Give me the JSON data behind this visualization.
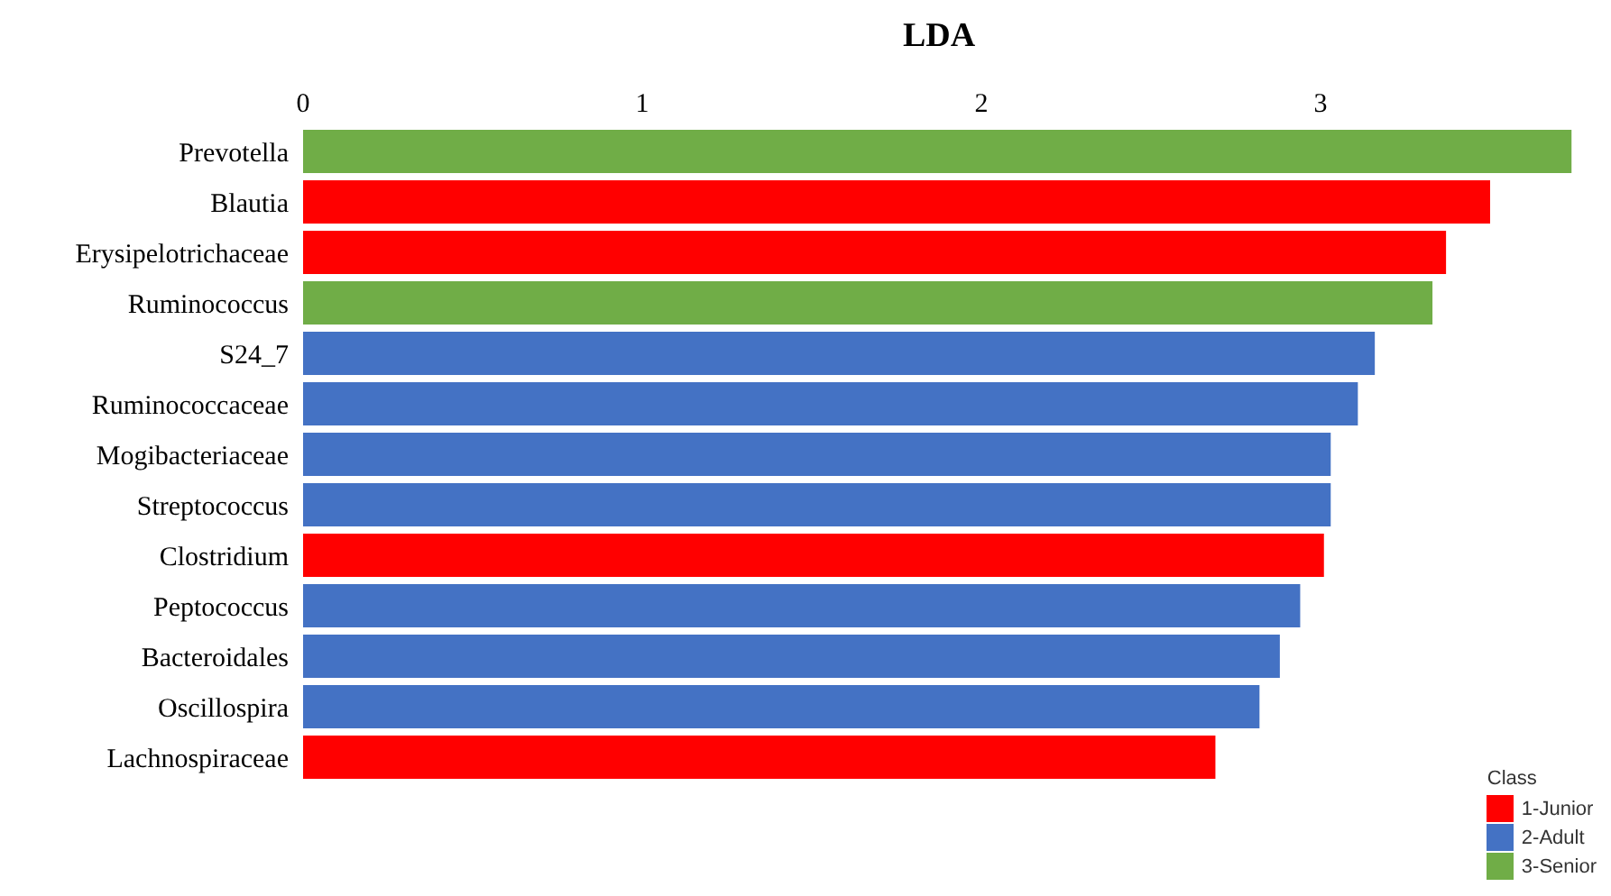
{
  "chart_data": {
    "type": "bar",
    "orientation": "horizontal",
    "stacked": true,
    "xlabel": "LDA",
    "legend_title": "Class",
    "legend": "bottom right",
    "grid": false,
    "categories": [
      "Prevotella",
      "Blautia",
      "Erysipelotrichaceae",
      "Ruminococcus",
      "S24_7",
      "Ruminococcaceae",
      "Mogibacteriaceae",
      "Streptococcus",
      "Clostridium",
      "Peptococcus",
      "Bacteroidales",
      "Oscillospira",
      "Lachnospiraceae"
    ],
    "series": [
      {
        "name": "1-Junior",
        "color": "#ff0000",
        "values": [
          null,
          3.5,
          3.37,
          null,
          null,
          null,
          null,
          null,
          3.01,
          null,
          null,
          null,
          2.69
        ]
      },
      {
        "name": "2-Adult",
        "color": "#4472c4",
        "values": [
          null,
          null,
          null,
          null,
          3.16,
          3.11,
          3.03,
          3.03,
          null,
          2.94,
          2.88,
          2.82,
          null
        ]
      },
      {
        "name": "3-Senior",
        "color": "#70ad47",
        "values": [
          3.74,
          null,
          null,
          3.33,
          null,
          null,
          null,
          null,
          null,
          null,
          null,
          null,
          null
        ]
      }
    ],
    "xlim": [
      0,
      3.75
    ],
    "xticks": [
      0,
      1,
      2,
      3
    ]
  }
}
